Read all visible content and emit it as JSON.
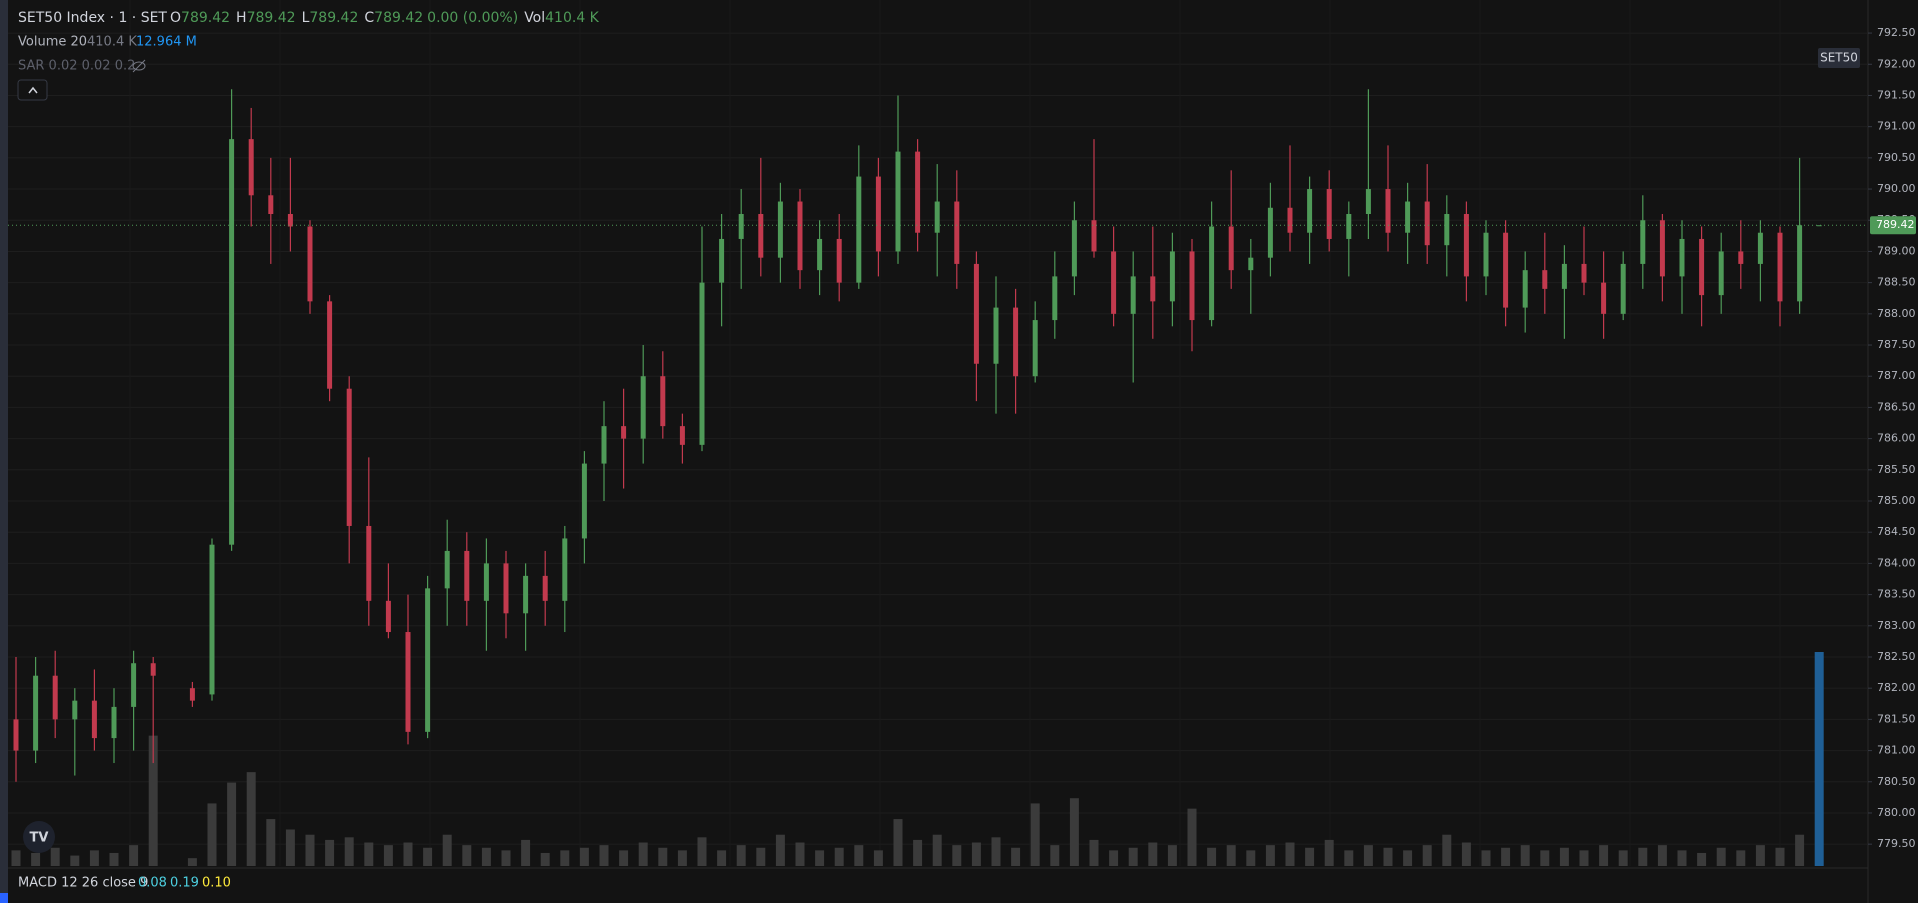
{
  "chart_data": {
    "type": "candlestick",
    "title": "SET50 Index · 1 · SET",
    "ohlc_letters": [
      "O",
      "H",
      "L",
      "C"
    ],
    "change_label": "0.00 (0.00%)",
    "volume_prefix": "Vol",
    "volume_label": "410.4 K",
    "indicators": {
      "volume": {
        "name": "Volume 20",
        "values": [
          "410.4 K",
          "12.964 M"
        ]
      },
      "sar": {
        "name": "SAR 0.02 0.02 0.2"
      },
      "macd": {
        "name": "MACD 12 26 close 9",
        "values": [
          "0.08",
          "0.19",
          "0.10"
        ]
      }
    },
    "symbol_badge": "SET50",
    "colors": {
      "up": "#4f9a58",
      "down": "#c23a4e",
      "volume": "#3b3b3b",
      "volume_last": "#1f5f96",
      "last_price": "#4f9a58"
    },
    "grid": true,
    "open": [
      781.5,
      781.0,
      782.2,
      781.5,
      781.8,
      781.2,
      781.7,
      782.4,
      null,
      782.0,
      781.9,
      784.3,
      790.8,
      789.9,
      789.6,
      789.4,
      788.2,
      786.8,
      784.6,
      783.4,
      782.9,
      781.3,
      783.6,
      784.2,
      783.4,
      784.0,
      783.2,
      783.8,
      783.4,
      784.4,
      785.6,
      786.2,
      786.0,
      787.0,
      786.2,
      785.9,
      788.5,
      789.2,
      789.6,
      788.9,
      789.8,
      788.7,
      789.2,
      788.5,
      790.2,
      789.0,
      790.6,
      789.3,
      789.8,
      788.8,
      787.2,
      788.1,
      787.0,
      787.9,
      788.6,
      789.5,
      789.0,
      788.0,
      788.6,
      788.2,
      789.0,
      787.9,
      789.4,
      788.7,
      788.9,
      789.7,
      789.3,
      790.0,
      789.2,
      789.6,
      790.0,
      789.3,
      789.8,
      789.1,
      789.6,
      788.6,
      789.3,
      788.1,
      788.7,
      788.4,
      788.8,
      788.5,
      788.0,
      788.8,
      789.5,
      788.6,
      789.2,
      788.3,
      789.0,
      788.8,
      789.3,
      788.2,
      789.42
    ],
    "high": [
      782.5,
      782.5,
      782.6,
      782.0,
      782.3,
      782.0,
      782.6,
      782.5,
      null,
      782.1,
      784.4,
      791.6,
      791.3,
      790.5,
      790.5,
      789.5,
      788.3,
      787.0,
      785.7,
      784.0,
      783.5,
      783.8,
      784.7,
      784.5,
      784.4,
      784.2,
      784.0,
      784.2,
      784.6,
      785.8,
      786.6,
      786.8,
      787.5,
      787.4,
      786.4,
      789.4,
      789.6,
      790.0,
      790.5,
      790.1,
      790.0,
      789.5,
      789.6,
      790.7,
      790.5,
      791.5,
      790.8,
      790.4,
      790.3,
      789.0,
      788.6,
      788.4,
      788.2,
      789.0,
      789.8,
      790.8,
      789.4,
      789.0,
      789.4,
      789.3,
      789.2,
      789.8,
      790.3,
      789.2,
      790.1,
      790.7,
      790.2,
      790.3,
      789.8,
      791.6,
      790.7,
      790.1,
      790.4,
      789.9,
      789.8,
      789.5,
      789.5,
      789.0,
      789.3,
      789.1,
      789.4,
      789.0,
      789.0,
      789.9,
      789.6,
      789.5,
      789.4,
      789.3,
      789.5,
      789.5,
      789.4,
      790.5,
      789.42
    ],
    "low": [
      780.5,
      780.8,
      781.2,
      780.6,
      781.0,
      780.8,
      781.0,
      780.8,
      null,
      781.7,
      781.8,
      784.2,
      789.4,
      788.8,
      789.0,
      788.0,
      786.6,
      784.0,
      783.0,
      782.8,
      781.1,
      781.2,
      783.0,
      783.0,
      782.6,
      782.8,
      782.6,
      783.0,
      782.9,
      784.0,
      785.0,
      785.2,
      785.6,
      786.0,
      785.6,
      785.8,
      787.8,
      788.4,
      788.6,
      788.5,
      788.4,
      788.3,
      788.2,
      788.4,
      788.6,
      788.8,
      789.0,
      788.6,
      788.4,
      786.6,
      786.4,
      786.4,
      786.9,
      787.6,
      788.3,
      788.9,
      787.8,
      786.9,
      787.6,
      787.8,
      787.4,
      787.8,
      788.4,
      788.0,
      788.6,
      789.0,
      788.8,
      789.0,
      788.6,
      789.2,
      789.0,
      788.8,
      788.8,
      788.6,
      788.2,
      788.3,
      787.8,
      787.7,
      788.0,
      787.6,
      788.3,
      787.6,
      787.9,
      788.4,
      788.2,
      788.0,
      787.8,
      788.0,
      788.4,
      788.2,
      787.8,
      788.0,
      789.42
    ],
    "close": [
      781.0,
      782.2,
      781.5,
      781.8,
      781.2,
      781.7,
      782.4,
      782.2,
      null,
      781.8,
      784.3,
      790.8,
      789.9,
      789.6,
      789.4,
      788.2,
      786.8,
      784.6,
      783.4,
      782.9,
      781.3,
      783.6,
      784.2,
      783.4,
      784.0,
      783.2,
      783.8,
      783.4,
      784.4,
      785.6,
      786.2,
      786.0,
      787.0,
      786.2,
      785.9,
      788.5,
      789.2,
      789.6,
      788.9,
      789.8,
      788.7,
      789.2,
      788.5,
      790.2,
      789.0,
      790.6,
      789.3,
      789.8,
      788.8,
      787.2,
      788.1,
      787.0,
      787.9,
      788.6,
      789.5,
      789.0,
      788.0,
      788.6,
      788.2,
      789.0,
      787.9,
      789.4,
      788.7,
      788.9,
      789.7,
      789.3,
      790.0,
      789.2,
      789.6,
      790.0,
      789.3,
      789.8,
      789.1,
      789.6,
      788.6,
      789.3,
      788.1,
      788.7,
      788.4,
      788.8,
      788.5,
      788.0,
      788.8,
      789.5,
      788.6,
      789.2,
      788.3,
      789.0,
      788.8,
      789.3,
      788.2,
      789.42,
      789.42
    ],
    "volume": [
      30,
      25,
      35,
      20,
      30,
      25,
      40,
      250,
      null,
      15,
      120,
      160,
      180,
      90,
      70,
      60,
      50,
      55,
      45,
      40,
      45,
      35,
      60,
      40,
      35,
      30,
      50,
      25,
      30,
      35,
      40,
      30,
      45,
      35,
      30,
      55,
      30,
      40,
      35,
      60,
      45,
      30,
      35,
      40,
      30,
      90,
      50,
      60,
      40,
      45,
      55,
      35,
      120,
      40,
      130,
      50,
      30,
      35,
      45,
      40,
      110,
      35,
      40,
      30,
      40,
      45,
      35,
      50,
      30,
      40,
      35,
      30,
      40,
      60,
      45,
      30,
      35,
      40,
      30,
      35,
      30,
      40,
      30,
      35,
      40,
      30,
      25,
      35,
      30,
      40,
      35,
      60,
      410.4
    ],
    "ylim": [
      779.15,
      793.03
    ],
    "yticks": [
      {
        "value": 779.5,
        "label": "779.50"
      },
      {
        "value": 780,
        "label": "780.00"
      },
      {
        "value": 780.5,
        "label": "780.50"
      },
      {
        "value": 781,
        "label": "781.00"
      },
      {
        "value": 781.5,
        "label": "781.50"
      },
      {
        "value": 782,
        "label": "782.00"
      },
      {
        "value": 782.5,
        "label": "782.50"
      },
      {
        "value": 783,
        "label": "783.00"
      },
      {
        "value": 783.5,
        "label": "783.50"
      },
      {
        "value": 784,
        "label": "784.00"
      },
      {
        "value": 784.5,
        "label": "784.50"
      },
      {
        "value": 785,
        "label": "785.00"
      },
      {
        "value": 785.5,
        "label": "785.50"
      },
      {
        "value": 786,
        "label": "786.00"
      },
      {
        "value": 786.5,
        "label": "786.50"
      },
      {
        "value": 787,
        "label": "787.00"
      },
      {
        "value": 787.5,
        "label": "787.50"
      },
      {
        "value": 788,
        "label": "788.00"
      },
      {
        "value": 788.5,
        "label": "788.50"
      },
      {
        "value": 789,
        "label": "789.00"
      },
      {
        "value": 789.5,
        "label": "789.50"
      },
      {
        "value": 790,
        "label": "790.00"
      },
      {
        "value": 790.5,
        "label": "790.50"
      },
      {
        "value": 791,
        "label": "791.00"
      },
      {
        "value": 791.5,
        "label": "791.50"
      },
      {
        "value": 792,
        "label": "792.00"
      },
      {
        "value": 792.5,
        "label": "792.50"
      }
    ]
  }
}
